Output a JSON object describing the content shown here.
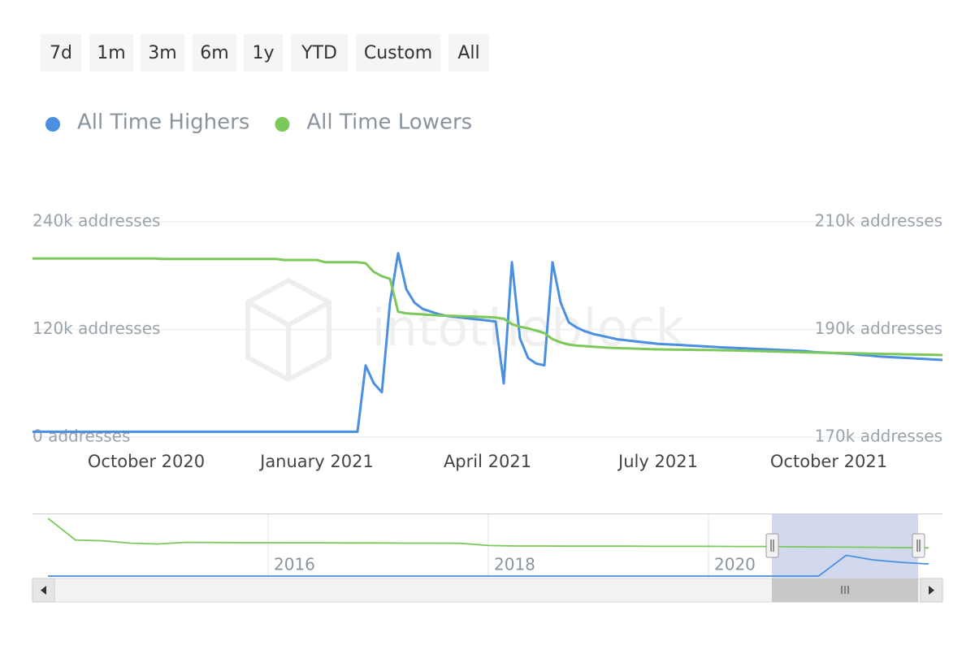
{
  "buttons": [
    "7d",
    "1m",
    "3m",
    "6m",
    "1y",
    "YTD",
    "Custom",
    "All"
  ],
  "watermark": "intotheblock",
  "chart_data": [
    {
      "type": "line",
      "xlim": [
        "2020-08",
        "2021-12"
      ],
      "xticks": [
        {
          "value": "2020-10",
          "label": "October 2020"
        },
        {
          "value": "2021-01",
          "label": "January 2021"
        },
        {
          "value": "2021-04",
          "label": "April 2021"
        },
        {
          "value": "2021-07",
          "label": "July 2021"
        },
        {
          "value": "2021-10",
          "label": "October 2021"
        }
      ],
      "ylim": [
        0,
        240000
      ],
      "yticks": [
        {
          "value": 0,
          "label": "0 addresses"
        },
        {
          "value": 120000,
          "label": "120k addresses"
        },
        {
          "value": 240000,
          "label": "240k addresses"
        }
      ],
      "y2lim": [
        170000,
        210000
      ],
      "y2ticks": [
        {
          "value": 170000,
          "label": "170k addresses"
        },
        {
          "value": 190000,
          "label": "190k addresses"
        },
        {
          "value": 210000,
          "label": "210k addresses"
        }
      ],
      "grid": true,
      "series": [
        {
          "name": "All Time Highers",
          "color": "#4a8fe0",
          "values": [
            6000,
            6000,
            6000,
            6000,
            6000,
            6000,
            6000,
            6000,
            6000,
            6000,
            6000,
            6000,
            6000,
            6000,
            6000,
            6000,
            6000,
            6000,
            6000,
            6000,
            6000,
            6000,
            6000,
            6000,
            6000,
            6000,
            6000,
            6000,
            6000,
            6000,
            6000,
            6000,
            6000,
            6000,
            6000,
            6000,
            6000,
            6000,
            6000,
            6000,
            6000,
            80000,
            60000,
            50000,
            150000,
            205000,
            165000,
            150000,
            143000,
            140000,
            137000,
            135000,
            134000,
            133000,
            132000,
            131000,
            130000,
            129000,
            60000,
            195000,
            110000,
            88000,
            82000,
            80000,
            195000,
            150000,
            128000,
            122000,
            118000,
            115000,
            113000,
            111000,
            109000,
            108000,
            107000,
            106000,
            105000,
            104000,
            103500,
            103000,
            102500,
            102000,
            101500,
            101000,
            100500,
            100000,
            99600,
            99200,
            98800,
            98400,
            98000,
            97600,
            97200,
            96800,
            96400,
            96000,
            95000,
            94500,
            94000,
            93500,
            93000,
            92500,
            91500,
            91000,
            90000,
            89500,
            89000,
            88500,
            88000,
            87500,
            87000,
            86500,
            86000
          ]
        },
        {
          "name": "All Time Lowers",
          "color": "#7cc85a",
          "axis": "y2",
          "values": [
            203200,
            203200,
            203200,
            203200,
            203200,
            203200,
            203200,
            203200,
            203200,
            203200,
            203200,
            203200,
            203200,
            203200,
            203200,
            203200,
            203100,
            203100,
            203100,
            203100,
            203100,
            203100,
            203100,
            203100,
            203100,
            203100,
            203100,
            203100,
            203100,
            203100,
            203100,
            202900,
            202900,
            202900,
            202900,
            202900,
            202500,
            202500,
            202500,
            202500,
            202500,
            202300,
            200700,
            199900,
            199400,
            193300,
            193000,
            192900,
            192800,
            192700,
            192600,
            192550,
            192500,
            192450,
            192400,
            192350,
            192300,
            192200,
            192000,
            191000,
            190500,
            190200,
            189800,
            189300,
            188200,
            187600,
            187200,
            187000,
            186900,
            186800,
            186700,
            186600,
            186550,
            186500,
            186450,
            186400,
            186350,
            186300,
            186280,
            186260,
            186240,
            186220,
            186200,
            186180,
            186160,
            186140,
            186120,
            186080,
            186040,
            186000,
            185960,
            185920,
            185880,
            185840,
            185800,
            185760,
            185720,
            185690,
            185660,
            185630,
            185600,
            185570,
            185540,
            185510,
            185480,
            185450,
            185420,
            185390,
            185360,
            185330,
            185300,
            185270,
            185250
          ]
        }
      ]
    },
    {
      "type": "navigator",
      "xlim": [
        2014,
        2022
      ],
      "xticks": [
        2016,
        2018,
        2020
      ],
      "ylim": [
        0,
        240000
      ],
      "y2lim": [
        170000,
        210000
      ],
      "series": [
        {
          "color": "#4a8fe0",
          "values": [
            6000,
            6000,
            6000,
            6000,
            6000,
            6000,
            6000,
            6000,
            6000,
            6000,
            6000,
            6000,
            6000,
            6000,
            6000,
            6000,
            6000,
            6000,
            6000,
            6000,
            6000,
            6000,
            6000,
            6000,
            6000,
            6000,
            6000,
            6000,
            6000,
            85000,
            67000,
            58000,
            52000
          ]
        },
        {
          "color": "#7cc85a",
          "axis": "y2",
          "values": [
            207500,
            193800,
            193300,
            191800,
            191300,
            192300,
            192200,
            192100,
            192100,
            192000,
            192000,
            191900,
            191900,
            191800,
            191800,
            191700,
            190300,
            190000,
            190000,
            189900,
            189900,
            189900,
            189800,
            189800,
            189800,
            189700,
            189700,
            189500,
            189400,
            189300,
            189200,
            189000,
            188800
          ]
        }
      ]
    }
  ]
}
